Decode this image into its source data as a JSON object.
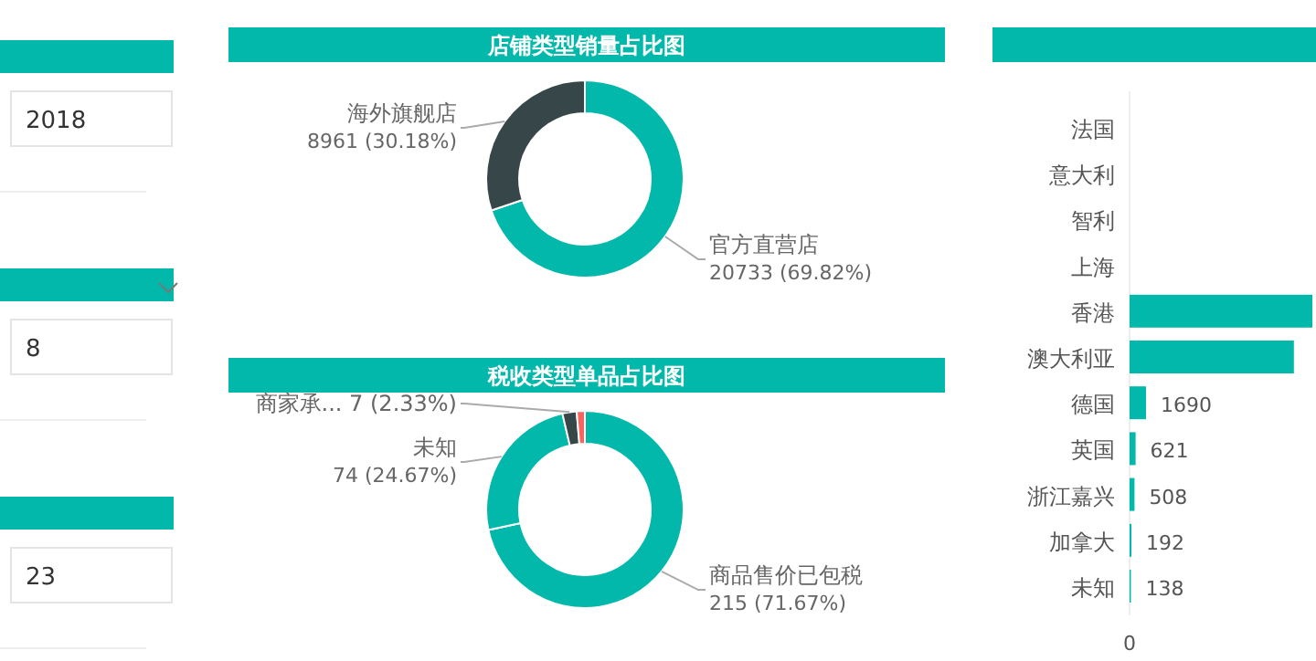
{
  "chart_data": [
    {
      "type": "other",
      "annotations": [
        "2018",
        "8",
        "23"
      ]
    },
    {
      "type": "donut",
      "title": "店铺类型销量占比图",
      "categories": [
        "官方直营店",
        "海外旗舰店"
      ],
      "values": [
        20733,
        8961
      ],
      "colors": [
        "#01b8aa",
        "#374649"
      ],
      "value_labels": [
        "20733 (69.82%)",
        "8961 (30.18%)"
      ]
    },
    {
      "type": "donut",
      "title": "税收类型单品占比图",
      "categories": [
        "商品售价已包税",
        "未知",
        "商家承...",
        null
      ],
      "values": [
        215,
        74,
        7,
        4
      ],
      "colors": [
        "#01b8aa",
        "#01b8aa",
        "#374649",
        "#fd625e"
      ],
      "value_labels": [
        "215 (71.67%)",
        "74 (24.67%)",
        "7 (2.33%)",
        null
      ]
    },
    {
      "type": "bar",
      "orientation": "horizontal",
      "categories": [
        "法国",
        "意大利",
        "智利",
        "上海",
        "香港",
        "澳大利亚",
        "德国",
        "英国",
        "浙江嘉兴",
        "加拿大",
        "未知"
      ],
      "values": [
        null,
        null,
        null,
        null,
        18800,
        16900,
        1690,
        621,
        508,
        192,
        138
      ],
      "color": "#01b8aa",
      "value_labels": [
        null,
        null,
        null,
        null,
        null,
        null,
        "1690",
        "621",
        "508",
        "192",
        "138"
      ],
      "annotations": [
        "0"
      ]
    }
  ]
}
